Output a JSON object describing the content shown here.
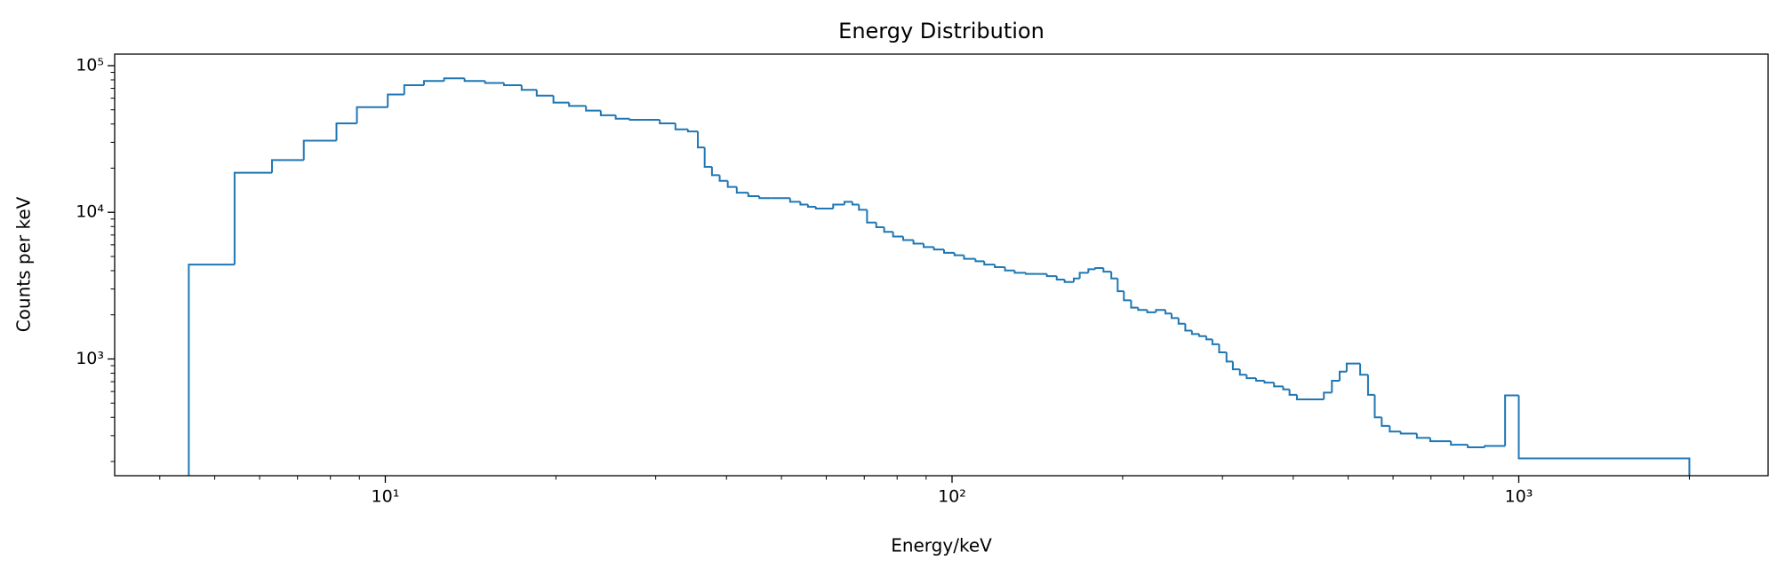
{
  "chart_data": {
    "type": "histogram",
    "title": "Energy Distribution",
    "x_label": "Energy/keV",
    "y_label": "Counts per keV",
    "xscale": "log",
    "yscale": "log",
    "xlim": [
      3.33,
      2754
    ],
    "ylim": [
      160,
      119800
    ],
    "xticks": [
      {
        "value": 10,
        "label": "10¹"
      },
      {
        "value": 100,
        "label": "10²"
      },
      {
        "value": 1000,
        "label": "10³"
      }
    ],
    "yticks": [
      {
        "value": 1000,
        "label": "10³"
      },
      {
        "value": 10000,
        "label": "10⁴"
      },
      {
        "value": 100000,
        "label": "10⁵"
      }
    ],
    "xminorticks": [
      4,
      5,
      6,
      7,
      8,
      9,
      20,
      30,
      40,
      50,
      60,
      70,
      80,
      90,
      200,
      300,
      400,
      500,
      600,
      700,
      800,
      900,
      2000
    ],
    "yminorticks": [
      200,
      300,
      400,
      500,
      600,
      700,
      800,
      900,
      2000,
      3000,
      4000,
      5000,
      6000,
      7000,
      8000,
      9000,
      20000,
      30000,
      40000,
      50000,
      60000,
      70000,
      80000,
      90000
    ],
    "grid": false,
    "color": "#1f77b4",
    "bins": [
      4.5,
      5.42,
      6.31,
      7.18,
      8.2,
      8.91,
      10.1,
      10.8,
      11.7,
      12.7,
      13.8,
      15,
      16.2,
      17.4,
      18.5,
      19.8,
      21.1,
      22.6,
      24,
      25.5,
      27,
      28.7,
      30.5,
      32.5,
      34.2,
      35.6,
      36.6,
      37.7,
      38.9,
      40.2,
      41.7,
      43.7,
      45.7,
      47.9,
      51.8,
      54,
      55.7,
      57.5,
      61.7,
      64.6,
      66.7,
      68.5,
      70.8,
      73.5,
      75.9,
      78.7,
      82,
      85.5,
      89.1,
      92.9,
      96.8,
      101,
      105,
      110,
      114,
      119,
      124,
      129,
      135,
      141,
      147,
      153,
      158,
      164,
      168,
      174,
      179,
      185,
      191,
      196,
      201,
      207,
      213,
      221,
      229,
      238,
      244,
      251,
      258,
      265,
      273,
      281,
      288,
      296,
      305,
      313,
      322,
      331,
      344,
      356,
      370,
      384,
      394,
      406,
      421,
      453,
      468,
      483,
      497,
      525,
      542,
      557,
      573,
      592,
      619,
      661,
      698,
      759,
      813,
      871,
      946,
      1000,
      2000
    ],
    "values": [
      4400,
      18600,
      22700,
      30800,
      40400,
      52100,
      63600,
      73500,
      78600,
      81900,
      78600,
      76200,
      73500,
      68400,
      62500,
      56000,
      53100,
      49400,
      45900,
      43500,
      42700,
      42700,
      40400,
      36800,
      35600,
      27700,
      20400,
      17900,
      16400,
      14900,
      13600,
      12900,
      12500,
      12500,
      11800,
      11300,
      10900,
      10600,
      11300,
      11800,
      11300,
      10400,
      8520,
      7920,
      7360,
      6840,
      6470,
      6120,
      5800,
      5580,
      5290,
      5090,
      4820,
      4640,
      4400,
      4230,
      4010,
      3870,
      3800,
      3800,
      3670,
      3480,
      3350,
      3540,
      3870,
      4090,
      4170,
      3940,
      3540,
      2900,
      2510,
      2240,
      2160,
      2080,
      2160,
      2040,
      1900,
      1740,
      1560,
      1480,
      1430,
      1360,
      1260,
      1110,
      960,
      850,
      780,
      740,
      710,
      690,
      650,
      620,
      570,
      530,
      530,
      590,
      710,
      820,
      930,
      780,
      570,
      400,
      350,
      320,
      310,
      290,
      275,
      260,
      250,
      255,
      565,
      210
    ]
  }
}
